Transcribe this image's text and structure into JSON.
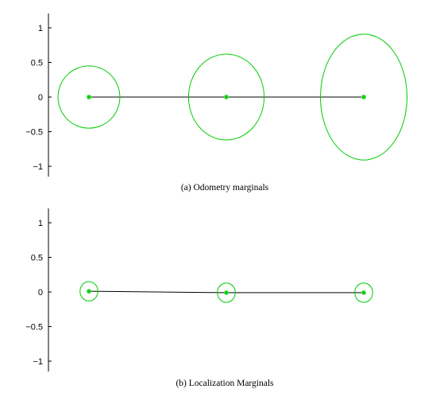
{
  "figure": {
    "captions": [
      "(a) Odometry marginals",
      "(b) Localization Marginals"
    ]
  },
  "chart_data": [
    {
      "type": "scatter",
      "caption": "(a) Odometry marginals",
      "ylim": [
        -1.15,
        1.2
      ],
      "yticks": [
        1,
        0.5,
        0,
        -0.5,
        -1
      ],
      "ytick_labels": [
        "1",
        "0.5",
        "0",
        "−0.5",
        "−1"
      ],
      "grid": false,
      "line_color": "#000000",
      "marker_color": "#00cc00",
      "ellipse_color": "#00cc00",
      "poses": [
        {
          "x": 0,
          "y": 0
        },
        {
          "x": 2,
          "y": 0
        },
        {
          "x": 4,
          "y": 0
        }
      ],
      "covariance_ellipses": [
        {
          "cx": 0,
          "cy": 0,
          "rx": 0.45,
          "ry": 0.45
        },
        {
          "cx": 2,
          "cy": 0,
          "rx": 0.55,
          "ry": 0.62
        },
        {
          "cx": 4,
          "cy": 0,
          "rx": 0.63,
          "ry": 0.91
        }
      ]
    },
    {
      "type": "scatter",
      "caption": "(b) Localization Marginals",
      "ylim": [
        -1.15,
        1.2
      ],
      "yticks": [
        1,
        0.5,
        0,
        -0.5,
        -1
      ],
      "ytick_labels": [
        "1",
        "0.5",
        "0",
        "−0.5",
        "−1"
      ],
      "grid": false,
      "line_color": "#000000",
      "marker_color": "#00cc00",
      "ellipse_color": "#00cc00",
      "poses": [
        {
          "x": 0,
          "y": 0.01
        },
        {
          "x": 2,
          "y": -0.01
        },
        {
          "x": 4,
          "y": -0.01
        }
      ],
      "covariance_ellipses": [
        {
          "cx": 0,
          "cy": 0.01,
          "rx": 0.13,
          "ry": 0.14
        },
        {
          "cx": 2,
          "cy": -0.01,
          "rx": 0.13,
          "ry": 0.14
        },
        {
          "cx": 4,
          "cy": -0.01,
          "rx": 0.13,
          "ry": 0.14
        }
      ]
    }
  ]
}
